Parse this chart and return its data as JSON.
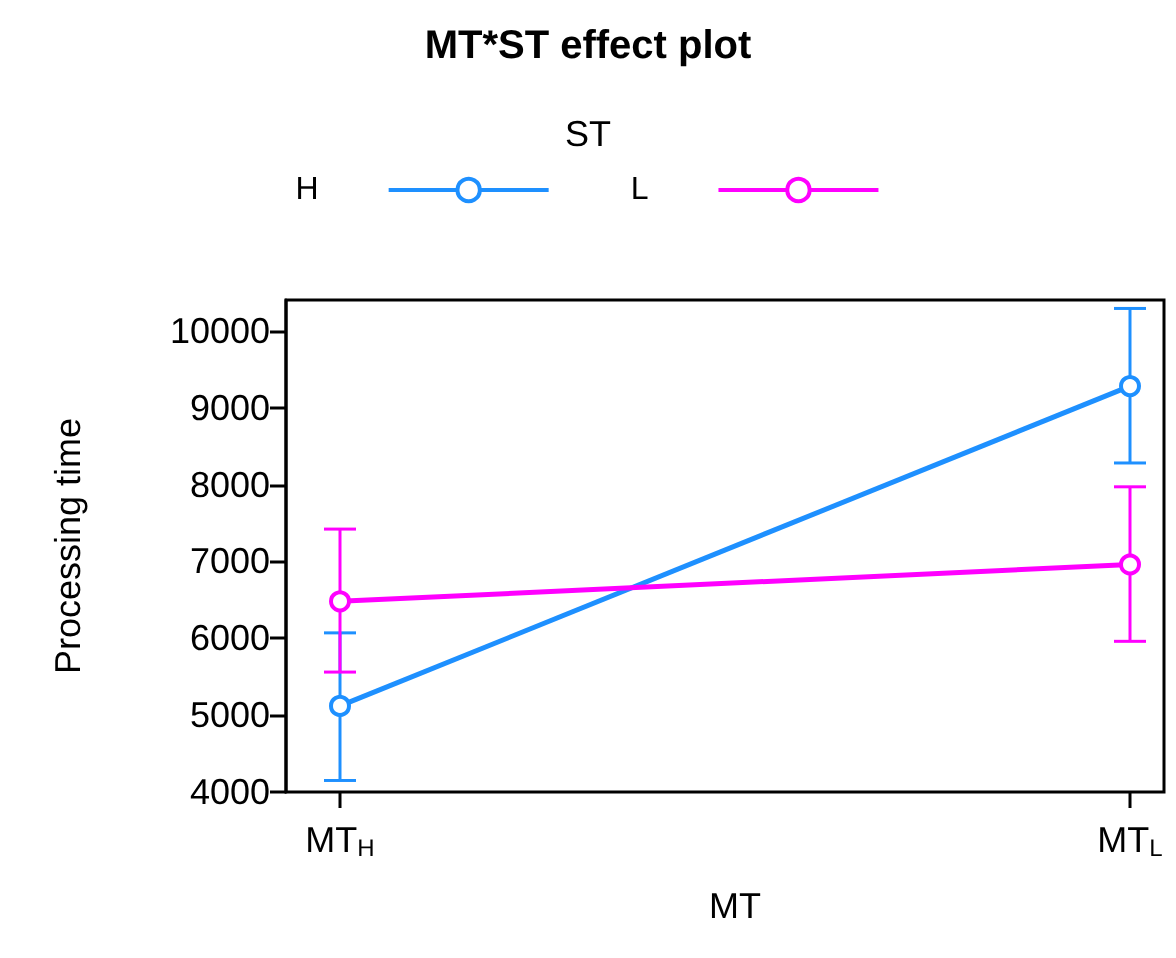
{
  "chart_data": {
    "type": "line",
    "title": "MT*ST effect plot",
    "xlabel": "MT",
    "ylabel": "Processing time",
    "legend_title": "ST",
    "legend": "top",
    "categories": [
      "MT$_{H}$",
      "MT$_{L}$"
    ],
    "series": [
      {
        "name": "H",
        "color": "#1e90ff",
        "values": [
          5120,
          9280
        ],
        "errors": [
          [
            4150,
            6070
          ],
          [
            8280,
            10290
          ]
        ]
      },
      {
        "name": "L",
        "color": "#ff00ff",
        "values": [
          6480,
          6960
        ],
        "errors": [
          [
            5560,
            7420
          ],
          [
            5960,
            7970
          ]
        ]
      }
    ],
    "ylim": [
      4000,
      10400
    ],
    "yticks": [
      4000,
      5000,
      6000,
      7000,
      8000,
      9000,
      10000
    ],
    "marker": "circle",
    "line_style": "solid",
    "grid": false
  }
}
